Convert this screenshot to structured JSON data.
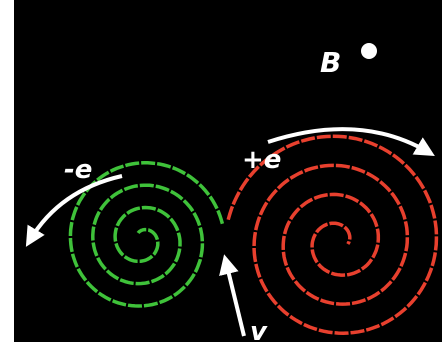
{
  "labels": {
    "field": "B",
    "electron": "-e",
    "positron": "+e",
    "velocity": "v"
  }
}
